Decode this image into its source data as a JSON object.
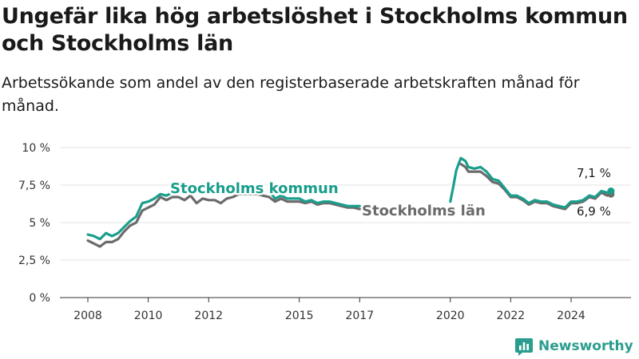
{
  "title": "Ungefär lika hög arbetslöshet i Stockholms kommun och Stockholms län",
  "subtitle": "Arbetssökande som andel av den registerbaserade arbetskraften månad för månad.",
  "brand": {
    "name": "Newsworthy",
    "logo_icon": "bar-chart-logo-icon"
  },
  "colors": {
    "kommun": "#1a9e8c",
    "lan": "#6b6b6b",
    "grid": "#e3e3e3",
    "axis": "#333333"
  },
  "chart_data": {
    "type": "line",
    "xlabel": "",
    "ylabel": "",
    "ylim": [
      0,
      10
    ],
    "xlim": [
      2007.5,
      2025.4
    ],
    "grid": true,
    "y_ticks": [
      0,
      2.5,
      5,
      7.5,
      10
    ],
    "y_tick_labels": [
      "0 %",
      "2,5 %",
      "5 %",
      "7,5 %",
      "10 %"
    ],
    "x_ticks": [
      2008,
      2010,
      2012,
      2015,
      2017,
      2020,
      2022,
      2024
    ],
    "x_tick_labels": [
      "2008",
      "2010",
      "2012",
      "2015",
      "2017",
      "2020",
      "2022",
      "2024"
    ],
    "end_labels": {
      "kommun": "7,1 %",
      "lan": "6,9 %"
    },
    "series": [
      {
        "key": "kommun",
        "name": "Stockholms kommun",
        "segments": [
          [
            [
              2008.0,
              4.2
            ],
            [
              2008.2,
              4.1
            ],
            [
              2008.4,
              3.9
            ],
            [
              2008.6,
              4.3
            ],
            [
              2008.8,
              4.1
            ],
            [
              2009.0,
              4.3
            ],
            [
              2009.2,
              4.7
            ],
            [
              2009.4,
              5.1
            ],
            [
              2009.6,
              5.4
            ],
            [
              2009.8,
              6.3
            ],
            [
              2010.0,
              6.4
            ],
            [
              2010.2,
              6.6
            ],
            [
              2010.4,
              6.9
            ],
            [
              2010.6,
              6.8
            ],
            [
              2010.8,
              7.0
            ],
            [
              2011.0,
              7.2
            ]
          ],
          [
            [
              2014.05,
              7.0
            ],
            [
              2014.2,
              6.6
            ],
            [
              2014.4,
              6.8
            ],
            [
              2014.6,
              6.6
            ],
            [
              2014.8,
              6.6
            ],
            [
              2015.0,
              6.6
            ],
            [
              2015.2,
              6.4
            ],
            [
              2015.4,
              6.5
            ],
            [
              2015.6,
              6.3
            ],
            [
              2015.8,
              6.4
            ],
            [
              2016.0,
              6.4
            ],
            [
              2016.2,
              6.3
            ],
            [
              2016.4,
              6.2
            ],
            [
              2016.6,
              6.1
            ],
            [
              2016.8,
              6.1
            ],
            [
              2017.0,
              6.1
            ]
          ],
          [
            [
              2020.0,
              6.4
            ],
            [
              2020.1,
              7.4
            ],
            [
              2020.2,
              8.5
            ],
            [
              2020.35,
              9.3
            ],
            [
              2020.5,
              9.1
            ],
            [
              2020.6,
              8.7
            ],
            [
              2020.8,
              8.6
            ],
            [
              2021.0,
              8.7
            ],
            [
              2021.2,
              8.4
            ],
            [
              2021.4,
              7.9
            ],
            [
              2021.6,
              7.8
            ],
            [
              2021.8,
              7.3
            ],
            [
              2022.0,
              6.8
            ],
            [
              2022.2,
              6.8
            ],
            [
              2022.4,
              6.6
            ],
            [
              2022.6,
              6.3
            ],
            [
              2022.8,
              6.5
            ],
            [
              2023.0,
              6.4
            ],
            [
              2023.2,
              6.4
            ],
            [
              2023.4,
              6.2
            ],
            [
              2023.6,
              6.1
            ],
            [
              2023.8,
              6.0
            ],
            [
              2024.0,
              6.4
            ],
            [
              2024.2,
              6.4
            ],
            [
              2024.4,
              6.5
            ],
            [
              2024.6,
              6.8
            ],
            [
              2024.8,
              6.7
            ],
            [
              2025.0,
              7.1
            ],
            [
              2025.2,
              7.0
            ],
            [
              2025.32,
              7.1
            ]
          ]
        ]
      },
      {
        "key": "lan",
        "name": "Stockholms län",
        "segments": [
          [
            [
              2008.0,
              3.8
            ],
            [
              2008.2,
              3.6
            ],
            [
              2008.4,
              3.4
            ],
            [
              2008.6,
              3.7
            ],
            [
              2008.8,
              3.7
            ],
            [
              2009.0,
              3.9
            ],
            [
              2009.2,
              4.4
            ],
            [
              2009.4,
              4.8
            ],
            [
              2009.6,
              5.0
            ],
            [
              2009.8,
              5.8
            ],
            [
              2010.0,
              6.0
            ],
            [
              2010.2,
              6.2
            ],
            [
              2010.4,
              6.7
            ],
            [
              2010.6,
              6.5
            ],
            [
              2010.8,
              6.7
            ],
            [
              2011.0,
              6.7
            ],
            [
              2011.2,
              6.5
            ],
            [
              2011.4,
              6.8
            ],
            [
              2011.6,
              6.3
            ],
            [
              2011.8,
              6.6
            ],
            [
              2012.0,
              6.5
            ],
            [
              2012.2,
              6.5
            ],
            [
              2012.4,
              6.3
            ],
            [
              2012.6,
              6.6
            ],
            [
              2012.8,
              6.7
            ],
            [
              2013.0,
              6.9
            ],
            [
              2013.2,
              6.9
            ],
            [
              2013.4,
              6.9
            ],
            [
              2013.6,
              6.9
            ],
            [
              2013.8,
              6.8
            ],
            [
              2014.0,
              6.7
            ],
            [
              2014.2,
              6.4
            ],
            [
              2014.4,
              6.6
            ],
            [
              2014.6,
              6.4
            ],
            [
              2014.8,
              6.4
            ],
            [
              2015.0,
              6.4
            ],
            [
              2015.2,
              6.3
            ],
            [
              2015.4,
              6.4
            ],
            [
              2015.6,
              6.2
            ],
            [
              2015.8,
              6.3
            ],
            [
              2016.0,
              6.3
            ],
            [
              2016.2,
              6.2
            ],
            [
              2016.4,
              6.1
            ],
            [
              2016.6,
              6.0
            ],
            [
              2016.8,
              6.0
            ],
            [
              2017.0,
              5.9
            ]
          ],
          [
            [
              2020.35,
              8.9
            ],
            [
              2020.5,
              8.7
            ],
            [
              2020.6,
              8.4
            ],
            [
              2020.8,
              8.4
            ],
            [
              2021.0,
              8.4
            ],
            [
              2021.2,
              8.1
            ],
            [
              2021.4,
              7.7
            ],
            [
              2021.6,
              7.6
            ],
            [
              2021.8,
              7.2
            ],
            [
              2022.0,
              6.7
            ],
            [
              2022.2,
              6.7
            ],
            [
              2022.4,
              6.5
            ],
            [
              2022.6,
              6.2
            ],
            [
              2022.8,
              6.4
            ],
            [
              2023.0,
              6.3
            ],
            [
              2023.2,
              6.3
            ],
            [
              2023.4,
              6.1
            ],
            [
              2023.6,
              6.0
            ],
            [
              2023.8,
              5.9
            ],
            [
              2024.0,
              6.3
            ],
            [
              2024.2,
              6.3
            ],
            [
              2024.4,
              6.4
            ],
            [
              2024.6,
              6.7
            ],
            [
              2024.8,
              6.6
            ],
            [
              2025.0,
              7.0
            ],
            [
              2025.2,
              6.8
            ],
            [
              2025.32,
              6.9
            ]
          ]
        ]
      }
    ]
  }
}
